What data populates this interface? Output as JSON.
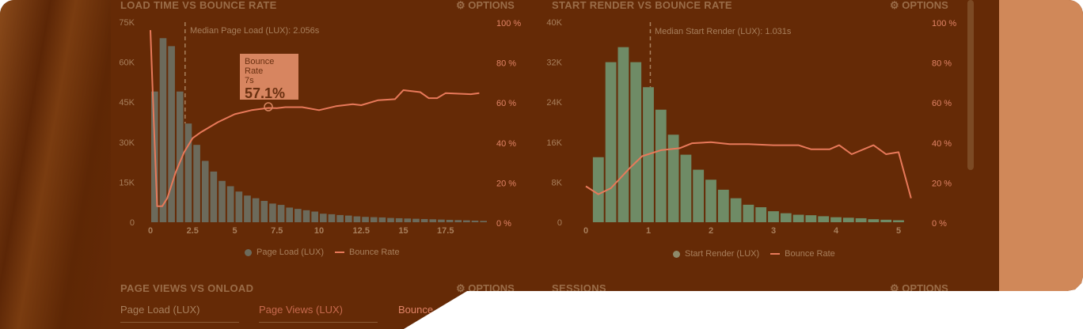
{
  "panels": {
    "load": {
      "title": "LOAD TIME VS BOUNCE RATE",
      "options": "OPTIONS",
      "median": "Median Page Load (LUX): 2.056s",
      "legend": [
        "Page Load (LUX)",
        "Bounce Rate"
      ],
      "tooltip": {
        "title": "Bounce Rate",
        "x": "7s",
        "value": "57.1%"
      }
    },
    "render": {
      "title": "START RENDER VS BOUNCE RATE",
      "options": "OPTIONS",
      "median": "Median Start Render (LUX): 1.031s",
      "legend": [
        "Start Render (LUX)",
        "Bounce Rate"
      ]
    },
    "pageviews": {
      "title": "PAGE VIEWS VS ONLOAD",
      "options": "OPTIONS",
      "tabs": [
        "Page Load (LUX)",
        "Page Views (LUX)",
        "Bounce"
      ]
    },
    "sessions": {
      "title": "SESSIONS",
      "options": "OPTIONS"
    }
  },
  "colors": {
    "bg": "#652a06",
    "line": "#e8795a",
    "bars_load": "#6c6a5b",
    "bars_render": "#6f8b66"
  },
  "chart_data": [
    {
      "type": "bar+line",
      "title": "LOAD TIME VS BOUNCE RATE",
      "xlim": [
        0,
        20
      ],
      "ylim": [
        0,
        75
      ],
      "y2lim": [
        0,
        100
      ],
      "xticks": [
        "0",
        "2.5",
        "5",
        "7.5",
        "10",
        "12.5",
        "15",
        "17.5"
      ],
      "xtick_vals": [
        0,
        2.5,
        5,
        7.5,
        10,
        12.5,
        15,
        17.5
      ],
      "yticks": [
        "0",
        "15K",
        "30K",
        "45K",
        "60K",
        "75K"
      ],
      "y2ticks": [
        "0 %",
        "20 %",
        "40 %",
        "60 %",
        "80 %",
        "100 %"
      ],
      "bin": 0.5,
      "bin_start": 0,
      "bars": [
        49,
        69,
        66,
        49,
        37,
        29,
        23,
        19,
        15.5,
        13.5,
        11.5,
        10,
        9,
        8,
        7,
        6.5,
        5.5,
        5,
        4.5,
        4,
        3.2,
        3,
        2.7,
        2.5,
        2.2,
        2,
        1.9,
        1.8,
        1.6,
        1.5,
        1.4,
        1.3,
        1.2,
        1.1,
        1,
        0.9,
        0.8,
        0.7,
        0.6,
        0.5
      ],
      "median": 2.056,
      "line": [
        [
          0,
          96
        ],
        [
          0.2,
          50
        ],
        [
          0.4,
          8
        ],
        [
          0.7,
          8
        ],
        [
          1,
          12
        ],
        [
          1.5,
          25
        ],
        [
          2,
          35
        ],
        [
          2.5,
          42
        ],
        [
          3,
          45
        ],
        [
          4,
          50
        ],
        [
          5,
          54
        ],
        [
          6,
          56
        ],
        [
          7,
          57.1
        ],
        [
          7.5,
          57
        ],
        [
          8,
          57.5
        ],
        [
          9,
          57.5
        ],
        [
          10,
          56
        ],
        [
          11,
          58
        ],
        [
          12,
          59
        ],
        [
          12.5,
          58.5
        ],
        [
          13.5,
          61
        ],
        [
          14.5,
          61.5
        ],
        [
          15,
          66
        ],
        [
          16,
          65
        ],
        [
          16.5,
          62
        ],
        [
          17,
          62
        ],
        [
          17.5,
          64.5
        ],
        [
          19,
          64
        ],
        [
          19.5,
          64.5
        ]
      ]
    },
    {
      "type": "bar+line",
      "title": "START RENDER VS BOUNCE RATE",
      "xlim": [
        0,
        5.3
      ],
      "ylim": [
        0,
        40
      ],
      "y2lim": [
        0,
        100
      ],
      "xticks": [
        "0",
        "1",
        "2",
        "3",
        "4",
        "5"
      ],
      "xtick_vals": [
        0,
        1,
        2,
        3,
        4,
        5
      ],
      "yticks": [
        "0",
        "8K",
        "16K",
        "24K",
        "32K",
        "40K"
      ],
      "y2ticks": [
        "0 %",
        "20 %",
        "40 %",
        "60 %",
        "80 %",
        "100 %"
      ],
      "bin": 0.2,
      "bin_start": 0.1,
      "bars": [
        13,
        32,
        35,
        32,
        27,
        22.5,
        17.5,
        13.5,
        10.5,
        8.5,
        6.5,
        4.8,
        3.5,
        3,
        2.2,
        1.8,
        1.5,
        1.4,
        1.2,
        1,
        0.9,
        0.8,
        0.6,
        0.5,
        0.4
      ],
      "median": 1.031,
      "line": [
        [
          0,
          18
        ],
        [
          0.2,
          14
        ],
        [
          0.4,
          17
        ],
        [
          0.7,
          27
        ],
        [
          0.9,
          33
        ],
        [
          1.2,
          36
        ],
        [
          1.5,
          37
        ],
        [
          1.7,
          39.5
        ],
        [
          2,
          40
        ],
        [
          2.3,
          39
        ],
        [
          2.6,
          39
        ],
        [
          3,
          38.5
        ],
        [
          3.4,
          38.5
        ],
        [
          3.6,
          36.5
        ],
        [
          3.9,
          36.5
        ],
        [
          4.05,
          38.5
        ],
        [
          4.25,
          34
        ],
        [
          4.6,
          38.5
        ],
        [
          4.8,
          34
        ],
        [
          5,
          35
        ],
        [
          5.2,
          12
        ]
      ]
    }
  ]
}
